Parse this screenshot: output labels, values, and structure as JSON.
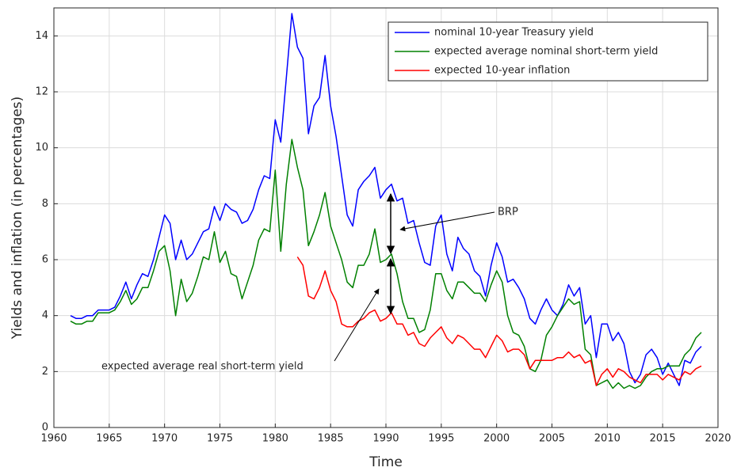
{
  "chart_data": {
    "type": "line",
    "x_label": "Time",
    "y_label": "Yields and inflation (in percentages)",
    "xlim": [
      1960,
      2020
    ],
    "xticks": [
      1960,
      1965,
      1970,
      1975,
      1980,
      1985,
      1990,
      1995,
      2000,
      2005,
      2010,
      2015,
      2020
    ],
    "ylim": [
      0,
      15
    ],
    "yticks": [
      0,
      2,
      4,
      6,
      8,
      10,
      12,
      14
    ],
    "grid": true,
    "legend": "top-right",
    "x": [
      1961.5,
      1962,
      1962.5,
      1963,
      1963.5,
      1964,
      1964.5,
      1965,
      1965.5,
      1966,
      1966.5,
      1967,
      1967.5,
      1968,
      1968.5,
      1969,
      1969.5,
      1970,
      1970.5,
      1971,
      1971.5,
      1972,
      1972.5,
      1973,
      1973.5,
      1974,
      1974.5,
      1975,
      1975.5,
      1976,
      1976.5,
      1977,
      1977.5,
      1978,
      1978.5,
      1979,
      1979.5,
      1980,
      1980.5,
      1981,
      1981.5,
      1982,
      1982.5,
      1983,
      1983.5,
      1984,
      1984.5,
      1985,
      1985.5,
      1986,
      1986.5,
      1987,
      1987.5,
      1988,
      1988.5,
      1989,
      1989.5,
      1990,
      1990.5,
      1991,
      1991.5,
      1992,
      1992.5,
      1993,
      1993.5,
      1994,
      1994.5,
      1995,
      1995.5,
      1996,
      1996.5,
      1997,
      1997.5,
      1998,
      1998.5,
      1999,
      1999.5,
      2000,
      2000.5,
      2001,
      2001.5,
      2002,
      2002.5,
      2003,
      2003.5,
      2004,
      2004.5,
      2005,
      2005.5,
      2006,
      2006.5,
      2007,
      2007.5,
      2008,
      2008.5,
      2009,
      2009.5,
      2010,
      2010.5,
      2011,
      2011.5,
      2012,
      2012.5,
      2013,
      2013.5,
      2014,
      2014.5,
      2015,
      2015.5,
      2016,
      2016.5,
      2017,
      2017.5,
      2018,
      2018.5
    ],
    "series": [
      {
        "name": "nominal 10-year Treasury yield",
        "color": "#0000ff",
        "values": [
          4.0,
          3.9,
          3.9,
          4.0,
          4.0,
          4.2,
          4.2,
          4.2,
          4.3,
          4.7,
          5.2,
          4.6,
          5.1,
          5.5,
          5.4,
          6.0,
          6.8,
          7.6,
          7.3,
          6.0,
          6.7,
          6.0,
          6.2,
          6.6,
          7.0,
          7.1,
          7.9,
          7.4,
          8.0,
          7.8,
          7.7,
          7.3,
          7.4,
          7.8,
          8.5,
          9.0,
          8.9,
          11.0,
          10.2,
          12.5,
          14.8,
          13.6,
          13.2,
          10.5,
          11.5,
          11.8,
          13.3,
          11.5,
          10.4,
          9.0,
          7.6,
          7.2,
          8.5,
          8.8,
          9.0,
          9.3,
          8.2,
          8.5,
          8.7,
          8.1,
          8.2,
          7.3,
          7.4,
          6.6,
          5.9,
          5.8,
          7.2,
          7.6,
          6.2,
          5.6,
          6.8,
          6.4,
          6.2,
          5.6,
          5.4,
          4.7,
          5.8,
          6.6,
          6.1,
          5.2,
          5.3,
          5.0,
          4.6,
          3.9,
          3.7,
          4.2,
          4.6,
          4.2,
          4.0,
          4.4,
          5.1,
          4.7,
          5.0,
          3.7,
          4.0,
          2.5,
          3.7,
          3.7,
          3.1,
          3.4,
          3.0,
          2.0,
          1.6,
          1.9,
          2.6,
          2.8,
          2.5,
          1.9,
          2.3,
          1.9,
          1.5,
          2.4,
          2.3,
          2.7,
          2.9
        ]
      },
      {
        "name": "expected average nominal short-term yield",
        "color": "#008000",
        "values": [
          3.8,
          3.7,
          3.7,
          3.8,
          3.8,
          4.1,
          4.1,
          4.1,
          4.2,
          4.5,
          4.9,
          4.4,
          4.6,
          5.0,
          5.0,
          5.6,
          6.3,
          6.5,
          5.6,
          4.0,
          5.3,
          4.5,
          4.8,
          5.4,
          6.1,
          6.0,
          7.0,
          5.9,
          6.3,
          5.5,
          5.4,
          4.6,
          5.2,
          5.8,
          6.7,
          7.1,
          7.0,
          9.2,
          6.3,
          8.7,
          10.3,
          9.3,
          8.5,
          6.5,
          7.0,
          7.6,
          8.4,
          7.2,
          6.6,
          6.0,
          5.2,
          5.0,
          5.8,
          5.8,
          6.2,
          7.1,
          5.9,
          6.0,
          6.2,
          5.5,
          4.5,
          3.9,
          3.9,
          3.4,
          3.5,
          4.2,
          5.5,
          5.5,
          4.9,
          4.6,
          5.2,
          5.2,
          5.0,
          4.8,
          4.8,
          4.5,
          5.1,
          5.6,
          5.2,
          4.0,
          3.4,
          3.3,
          2.9,
          2.1,
          2.0,
          2.4,
          3.3,
          3.6,
          4.0,
          4.3,
          4.6,
          4.4,
          4.5,
          2.8,
          2.6,
          1.5,
          1.6,
          1.7,
          1.4,
          1.6,
          1.4,
          1.5,
          1.4,
          1.5,
          1.8,
          2.0,
          2.1,
          2.1,
          2.2,
          2.2,
          2.2,
          2.6,
          2.8,
          3.2,
          3.4
        ]
      },
      {
        "name": "expected 10-year inflation",
        "color": "#ff0000",
        "values": [
          null,
          null,
          null,
          null,
          null,
          null,
          null,
          null,
          null,
          null,
          null,
          null,
          null,
          null,
          null,
          null,
          null,
          null,
          null,
          null,
          null,
          null,
          null,
          null,
          null,
          null,
          null,
          null,
          null,
          null,
          null,
          null,
          null,
          null,
          null,
          null,
          null,
          null,
          null,
          null,
          null,
          6.1,
          5.8,
          4.7,
          4.6,
          5.0,
          5.6,
          4.9,
          4.5,
          3.7,
          3.6,
          3.6,
          3.8,
          3.9,
          4.1,
          4.2,
          3.8,
          3.9,
          4.1,
          3.7,
          3.7,
          3.3,
          3.4,
          3.0,
          2.9,
          3.2,
          3.4,
          3.6,
          3.2,
          3.0,
          3.3,
          3.2,
          3.0,
          2.8,
          2.8,
          2.5,
          2.9,
          3.3,
          3.1,
          2.7,
          2.8,
          2.8,
          2.6,
          2.1,
          2.4,
          2.4,
          2.4,
          2.4,
          2.5,
          2.5,
          2.7,
          2.5,
          2.6,
          2.3,
          2.4,
          1.5,
          1.9,
          2.1,
          1.8,
          2.1,
          2.0,
          1.8,
          1.7,
          1.6,
          1.9,
          1.9,
          1.9,
          1.7,
          1.9,
          1.8,
          1.7,
          2.0,
          1.9,
          2.1,
          2.2
        ]
      }
    ],
    "annotations": [
      "BRP",
      "expected average real short-term yield"
    ]
  }
}
